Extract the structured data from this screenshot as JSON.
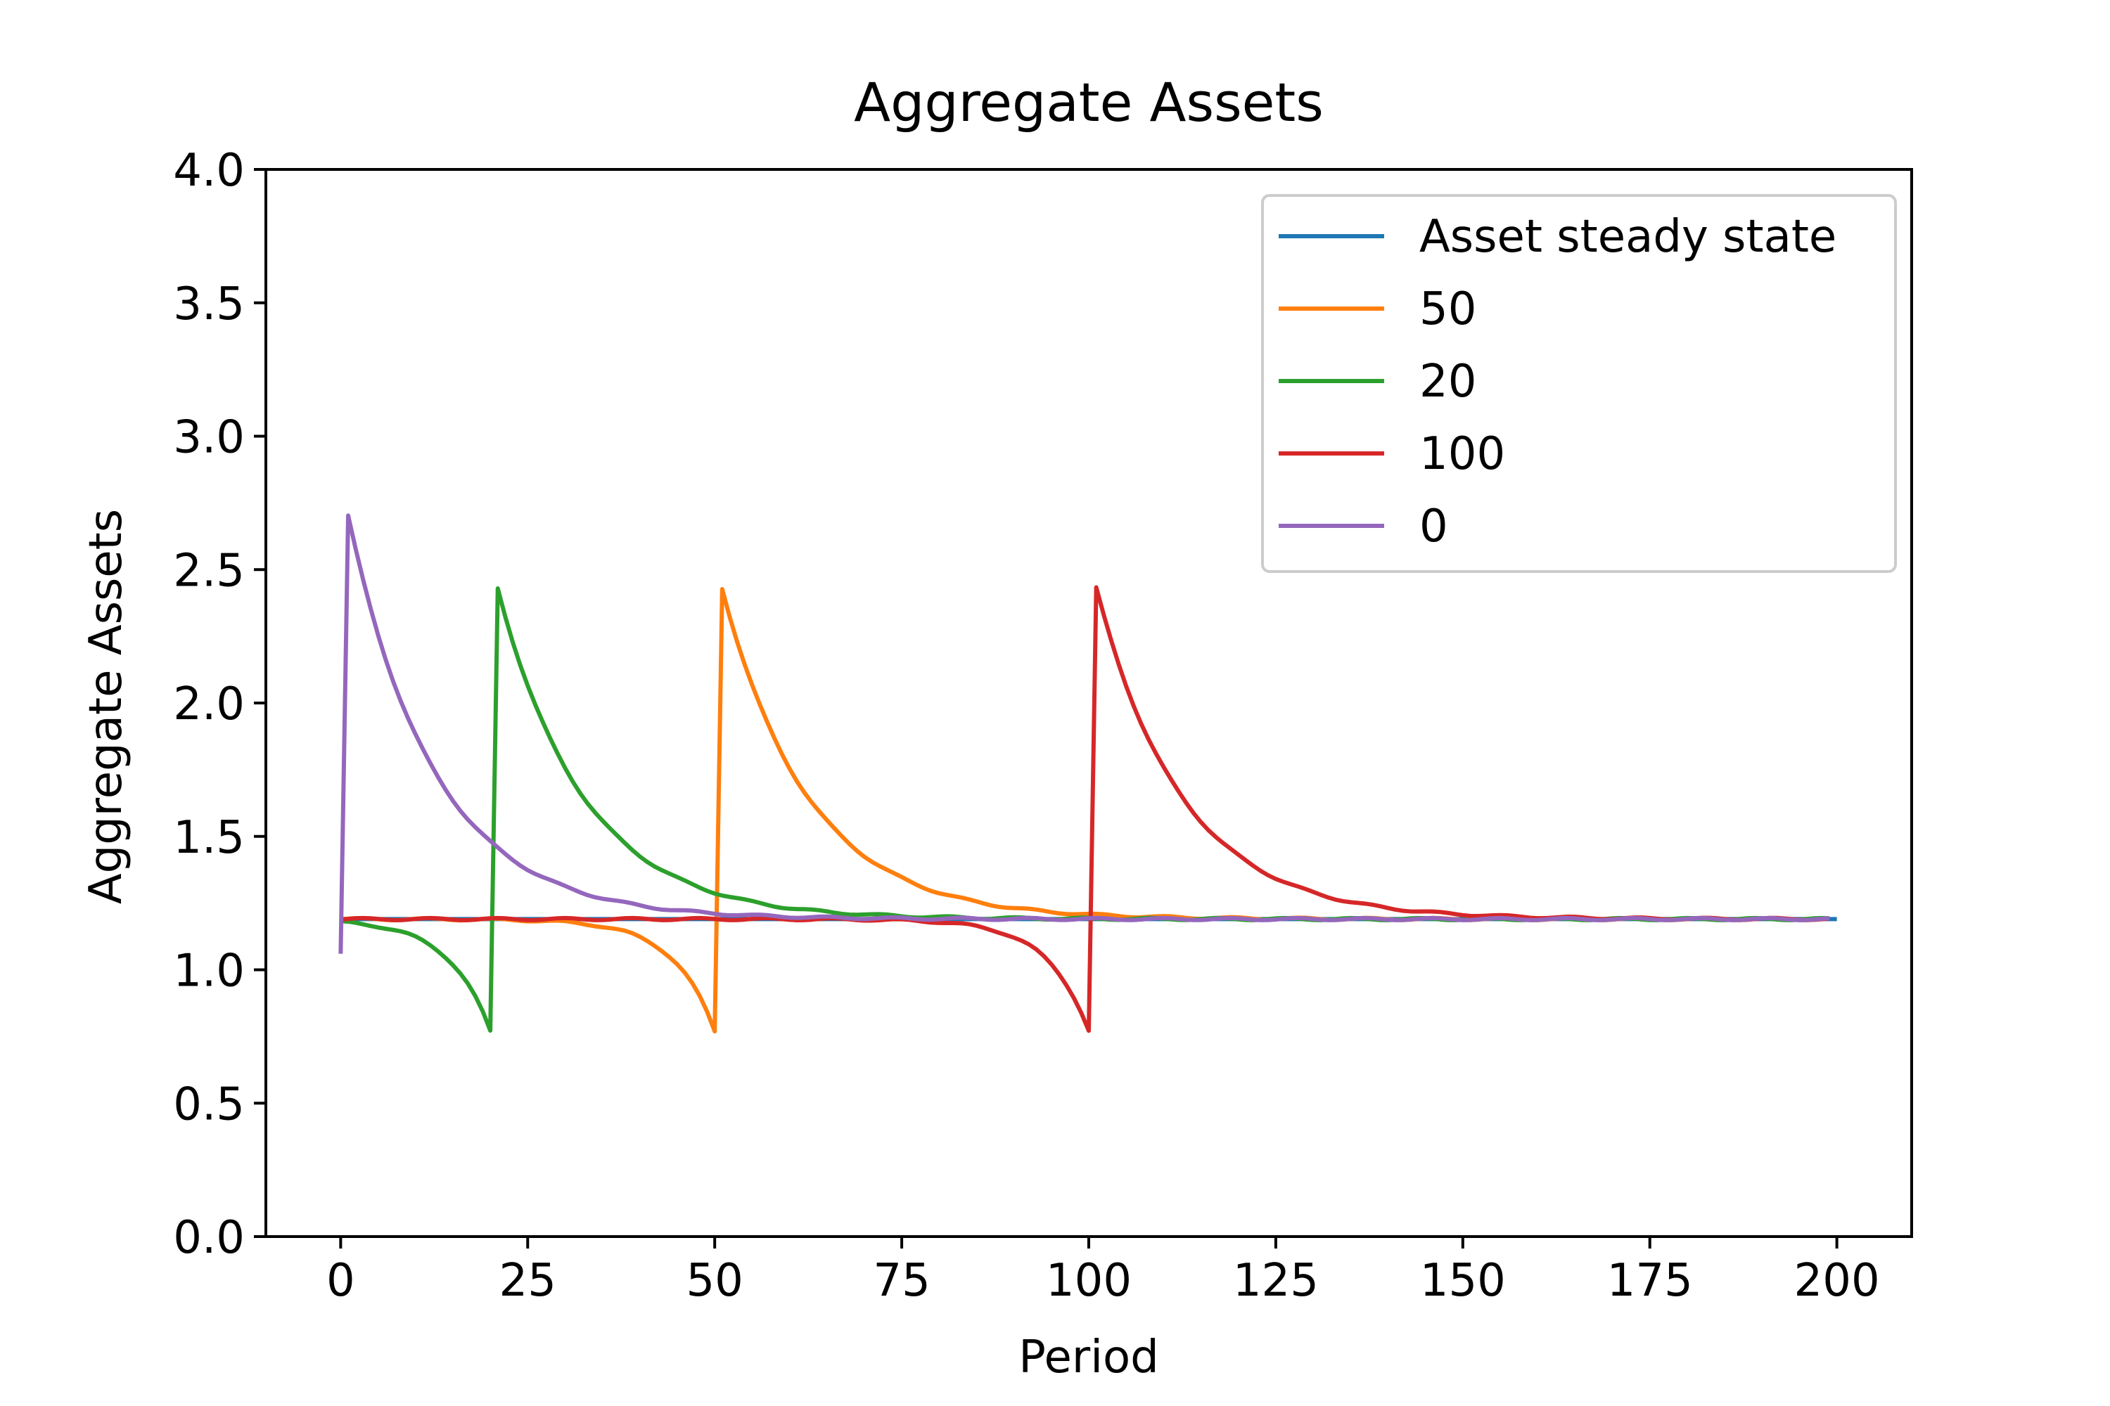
{
  "chart_data": {
    "type": "line",
    "title": "Aggregate Assets",
    "xlabel": "Period",
    "ylabel": "Aggregate Assets",
    "xlim": [
      -10,
      210
    ],
    "ylim": [
      0.0,
      4.0
    ],
    "xticks": [
      0,
      25,
      50,
      75,
      100,
      125,
      150,
      175,
      200
    ],
    "yticks": [
      0.0,
      0.5,
      1.0,
      1.5,
      2.0,
      2.5,
      3.0,
      3.5,
      4.0
    ],
    "ytick_labels": [
      "0.0",
      "0.5",
      "1.0",
      "1.5",
      "2.0",
      "2.5",
      "3.0",
      "3.5",
      "4.0"
    ],
    "grid": false,
    "legend_position": "top-right",
    "steady_state": 1.19,
    "series": [
      {
        "name": "Asset steady state",
        "color": "#1f77b4",
        "shock_period": null,
        "x": [
          0,
          200
        ],
        "y": [
          1.19,
          1.19
        ]
      },
      {
        "name": "50",
        "color": "#ff7f0e",
        "shock_period": 50,
        "trough": 0.77,
        "peak": 2.43,
        "x_end": 199
      },
      {
        "name": "20",
        "color": "#2ca02c",
        "shock_period": 20,
        "trough": 0.77,
        "peak": 2.43,
        "x_end": 199
      },
      {
        "name": "100",
        "color": "#d62728",
        "shock_period": 100,
        "trough": 0.77,
        "peak": 2.43,
        "x_end": 199
      },
      {
        "name": "0",
        "color": "#9467bd",
        "shock_period": 0,
        "start": 1.06,
        "peak": 2.7,
        "x_end": 199
      }
    ]
  }
}
